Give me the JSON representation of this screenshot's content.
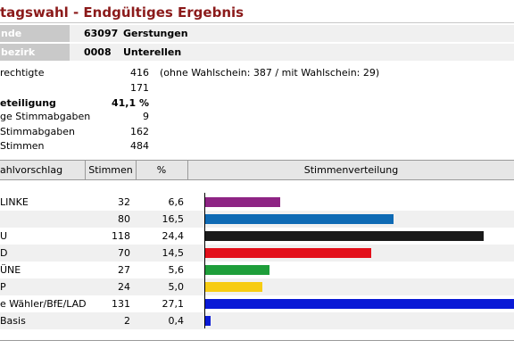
{
  "title": "tagswahl - Endgültiges Ergebnis",
  "gemeinde": {
    "label": "nde",
    "number": "63097",
    "name": "Gerstungen"
  },
  "bezirk": {
    "label": "bezirk",
    "number": "0008",
    "name": "Unterellen"
  },
  "stats": [
    {
      "label": "rechtigte",
      "value": "416",
      "note": "(ohne Wahlschein: 387 / mit Wahlschein: 29)"
    },
    {
      "label": "",
      "value": "171"
    },
    {
      "label": "eteiligung",
      "value": "41,1 %",
      "bold": true
    },
    {
      "label": "ge Stimmabgaben",
      "value": "9"
    },
    {
      "label": "Stimmabgaben",
      "value": "162"
    },
    {
      "label": "Stimmen",
      "value": "484"
    }
  ],
  "table": {
    "headers": {
      "party": "ahlvorschlag",
      "votes": "Stimmen",
      "pct": "%",
      "distribution": "Stimmenverteilung"
    },
    "rows": [
      {
        "party": "LINKE",
        "votes": "32",
        "pct": "6,6",
        "share": 6.6,
        "color": "#8e2484"
      },
      {
        "party": "",
        "votes": "80",
        "pct": "16,5",
        "share": 16.5,
        "color": "#0e6ab4"
      },
      {
        "party": "U",
        "votes": "118",
        "pct": "24,4",
        "share": 24.4,
        "color": "#1a1a1a"
      },
      {
        "party": "D",
        "votes": "70",
        "pct": "14,5",
        "share": 14.5,
        "color": "#e3101b"
      },
      {
        "party": "ÜNE",
        "votes": "27",
        "pct": "5,6",
        "share": 5.6,
        "color": "#1e9e3a"
      },
      {
        "party": "P",
        "votes": "24",
        "pct": "5,0",
        "share": 5.0,
        "color": "#f7cc12"
      },
      {
        "party": "e Wähler/BfE/LAD",
        "votes": "131",
        "pct": "27,1",
        "share": 27.1,
        "color": "#0a1ad6"
      },
      {
        "party": "Basis",
        "votes": "2",
        "pct": "0,4",
        "share": 0.4,
        "color": "#0a1ad6"
      }
    ]
  }
}
